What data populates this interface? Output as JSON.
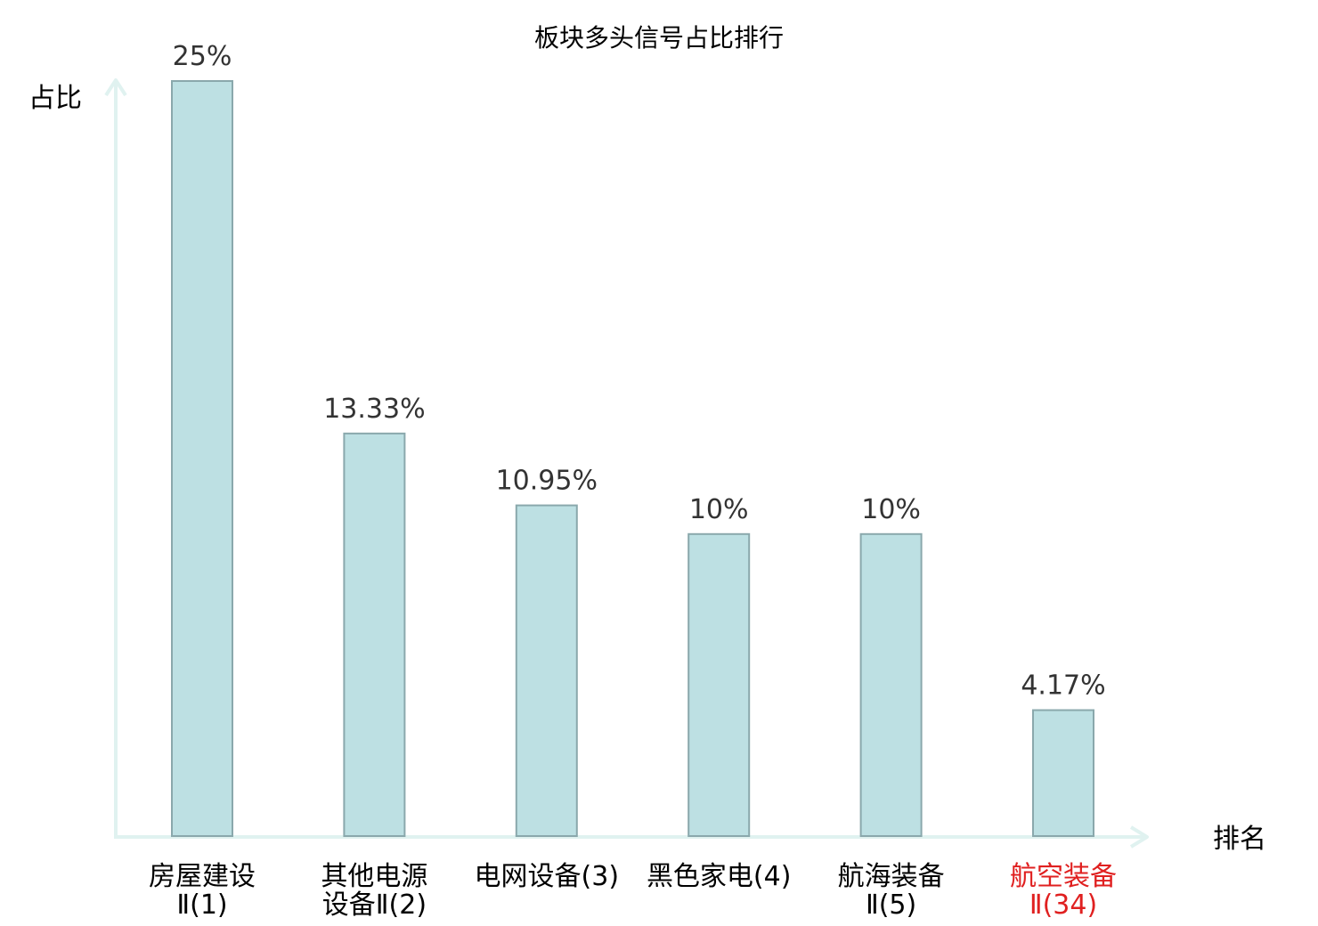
{
  "chart_data": {
    "type": "bar",
    "title": "板块多头信号占比排行",
    "ylabel": "占比",
    "xlabel": "排名",
    "ylim": [
      0,
      25
    ],
    "grid": false,
    "categories": [
      [
        "房屋建设",
        "Ⅱ(1)"
      ],
      [
        "其他电源",
        "设备Ⅱ(2)"
      ],
      [
        "电网设备(3)"
      ],
      [
        "黑色家电(4)"
      ],
      [
        "航海装备",
        "Ⅱ(5)"
      ],
      [
        "航空装备",
        "Ⅱ(34)"
      ]
    ],
    "values": [
      25,
      13.33,
      10.95,
      10,
      10,
      4.17
    ],
    "value_labels": [
      "25%",
      "13.33%",
      "10.95%",
      "10%",
      "10%",
      "4.17%"
    ],
    "highlight_index": 5,
    "colors": {
      "bar_fill": "#bde0e3",
      "bar_stroke": "#8aa8ac",
      "axis": "#e0f2f0",
      "highlight_text": "#e02020",
      "text": "#000000",
      "value_text": "#333333"
    }
  }
}
